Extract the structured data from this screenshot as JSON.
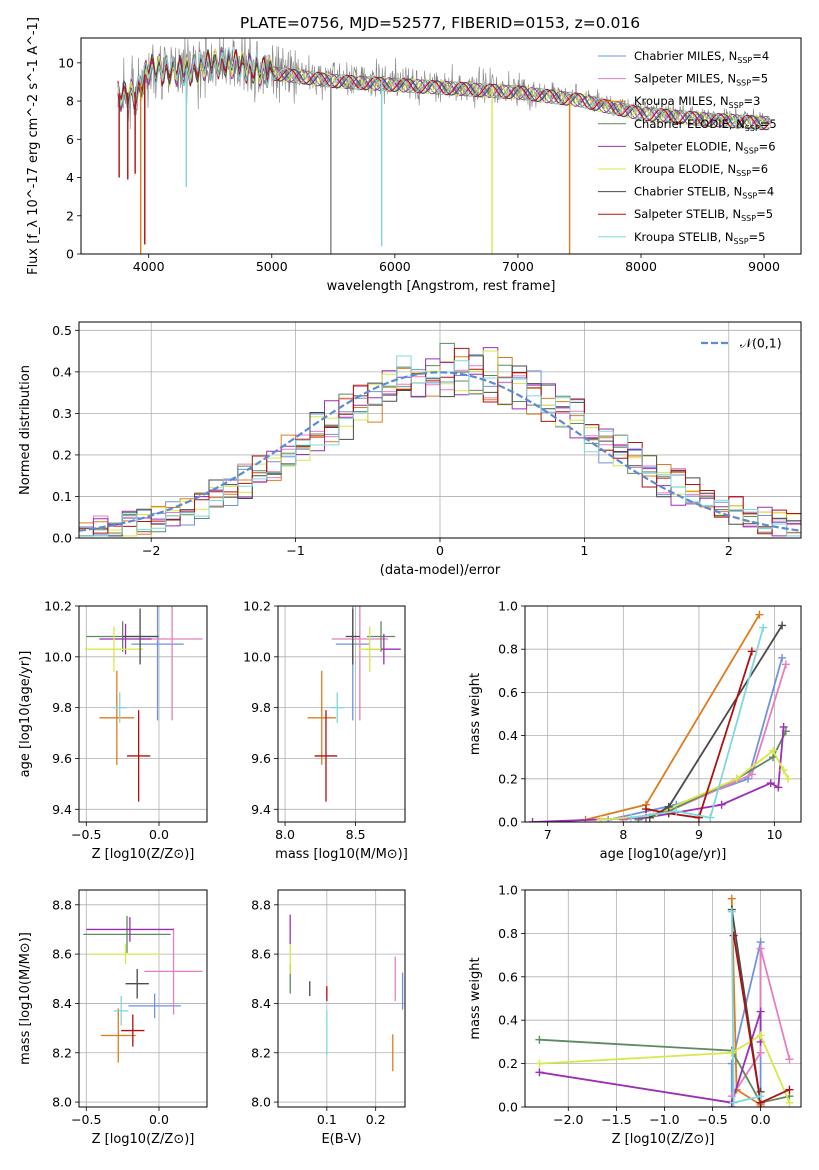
{
  "figure": {
    "title": "PLATE=0756, MJD=52577, FIBERID=0153, z=0.016"
  },
  "legend_spectrum": [
    {
      "pre": "Chabrier MILES, N",
      "sub": "SSP",
      "post": "=4",
      "color": "#6f93e0"
    },
    {
      "pre": "Salpeter MILES, N",
      "sub": "SSP",
      "post": "=5",
      "color": "#e67fbf"
    },
    {
      "pre": "Kroupa MILES, N",
      "sub": "SSP",
      "post": "=3",
      "color": "#e07b1d"
    },
    {
      "pre": "Chabrier ELODIE, N",
      "sub": "SSP",
      "post": "=5",
      "color": "#5f8a5f"
    },
    {
      "pre": "Salpeter ELODIE, N",
      "sub": "SSP",
      "post": "=6",
      "color": "#9b2fb5"
    },
    {
      "pre": "Kroupa ELODIE, N",
      "sub": "SSP",
      "post": "=6",
      "color": "#d7e84a"
    },
    {
      "pre": "Chabrier STELIB, N",
      "sub": "SSP",
      "post": "=4",
      "color": "#4a4a4a"
    },
    {
      "pre": "Salpeter STELIB, N",
      "sub": "SSP",
      "post": "=5",
      "color": "#b01010"
    },
    {
      "pre": "Kroupa STELIB, N",
      "sub": "SSP",
      "post": "=5",
      "color": "#7fd8de"
    }
  ],
  "chart_data": [
    {
      "id": "spectrum",
      "type": "line",
      "xlabel": "wavelength [Angstrom, rest frame]",
      "ylabel": "Flux [f_λ 10^-17 erg cm^-2 s^-1 A^-1]",
      "xlim": [
        3450,
        9300
      ],
      "ylim": [
        0,
        11.3
      ],
      "xticks": [
        4000,
        5000,
        6000,
        7000,
        8000,
        9000
      ],
      "yticks": [
        0,
        2,
        4,
        6,
        8,
        10
      ],
      "grid": false,
      "legend_position": "top-right",
      "data_color": "#808080",
      "data_range": [
        3750,
        9050
      ],
      "continuum": [
        [
          3750,
          8.4
        ],
        [
          3900,
          8.5
        ],
        [
          4000,
          9.8
        ],
        [
          4300,
          9.7
        ],
        [
          4600,
          10.2
        ],
        [
          5000,
          9.6
        ],
        [
          5500,
          9.2
        ],
        [
          6000,
          9.0
        ],
        [
          6500,
          8.8
        ],
        [
          7000,
          8.6
        ],
        [
          7500,
          8.2
        ],
        [
          7700,
          7.9
        ],
        [
          8000,
          7.5
        ],
        [
          8500,
          7.2
        ],
        [
          9000,
          7.0
        ],
        [
          9050,
          7.0
        ]
      ],
      "dips": [
        {
          "x": 3760,
          "y": 4.0,
          "color": "#b01010"
        },
        {
          "x": 3830,
          "y": 3.9,
          "color": "#b01010"
        },
        {
          "x": 3890,
          "y": 4.2,
          "color": "#b01010"
        },
        {
          "x": 3935,
          "y": 0.0,
          "color": "#e07b1d"
        },
        {
          "x": 3968,
          "y": 0.5,
          "color": "#b01010"
        },
        {
          "x": 4305,
          "y": 3.5,
          "color": "#7fd8de"
        },
        {
          "x": 5480,
          "y": 0.0,
          "color": "#808080"
        },
        {
          "x": 5893,
          "y": 0.4,
          "color": "#7fd8de"
        },
        {
          "x": 6790,
          "y": 0.0,
          "color": "#d7e84a"
        },
        {
          "x": 7420,
          "y": 0.0,
          "color": "#e07b1d"
        },
        {
          "x": 8770,
          "y": 6.6,
          "color": "#7fd8de"
        }
      ]
    },
    {
      "id": "residuals",
      "type": "histogram",
      "xlabel": "(data-model)/error",
      "ylabel": "Normed distribution",
      "xlim": [
        -2.5,
        2.5
      ],
      "ylim": [
        0,
        0.52
      ],
      "xticks": [
        -2,
        -1,
        0,
        1,
        2
      ],
      "yticks": [
        0.0,
        0.1,
        0.2,
        0.3,
        0.4,
        0.5
      ],
      "grid": true,
      "legend_position": "top-right",
      "reference_label": "𝒩(0,1)",
      "reference_color": "#5b8bd6",
      "bins": 50,
      "series_colors": [
        "#6f93e0",
        "#e67fbf",
        "#e07b1d",
        "#5f8a5f",
        "#9b2fb5",
        "#d7e84a",
        "#4a4a4a",
        "#b01010",
        "#7fd8de"
      ]
    },
    {
      "id": "age_vs_Z",
      "type": "errorbar",
      "xlabel": "Z [log10(Z/Z⊙)]",
      "ylabel": "age  [log10(age/yr)]",
      "xlim": [
        -0.55,
        0.33
      ],
      "ylim": [
        9.35,
        10.2
      ],
      "xticks": [
        -0.5,
        0.0
      ],
      "yticks": [
        9.4,
        9.6,
        9.8,
        10.0,
        10.2
      ],
      "grid": true,
      "points": [
        {
          "x": -0.01,
          "y": 10.05,
          "xerr": 0.18,
          "yerr": 0.6,
          "color": "#6f93e0"
        },
        {
          "x": 0.09,
          "y": 10.07,
          "xerr": 0.21,
          "yerr": 0.64,
          "color": "#e67fbf"
        },
        {
          "x": -0.29,
          "y": 9.76,
          "xerr": 0.12,
          "yerr": 0.37,
          "color": "#e07b1d"
        },
        {
          "x": -0.25,
          "y": 10.08,
          "xerr": 0.25,
          "yerr": 0.12,
          "color": "#5f8a5f"
        },
        {
          "x": -0.23,
          "y": 10.07,
          "xerr": 0.18,
          "yerr": 0.12,
          "color": "#9b2fb5"
        },
        {
          "x": -0.31,
          "y": 10.03,
          "xerr": 0.2,
          "yerr": 0.18,
          "color": "#d7e84a"
        },
        {
          "x": -0.13,
          "y": 10.08,
          "xerr": 0.12,
          "yerr": 0.22,
          "color": "#4a4a4a"
        },
        {
          "x": -0.14,
          "y": 9.61,
          "xerr": 0.08,
          "yerr": 0.36,
          "color": "#b01010"
        },
        {
          "x": -0.27,
          "y": 9.8,
          "xerr": 0.05,
          "yerr": 0.12,
          "color": "#7fd8de"
        }
      ]
    },
    {
      "id": "age_vs_mass",
      "type": "errorbar",
      "xlabel": "mass [log10(M/M⊙)]",
      "ylabel": "",
      "xlim": [
        7.95,
        8.85
      ],
      "ylim": [
        9.35,
        10.2
      ],
      "xticks": [
        8.0,
        8.5
      ],
      "yticks": [
        9.4,
        9.6,
        9.8,
        10.0,
        10.2
      ],
      "grid": true,
      "points": [
        {
          "x": 8.48,
          "y": 10.05,
          "xerr": 0.12,
          "yerr": 0.6,
          "color": "#6f93e0"
        },
        {
          "x": 8.53,
          "y": 10.07,
          "xerr": 0.2,
          "yerr": 0.64,
          "color": "#e67fbf"
        },
        {
          "x": 8.26,
          "y": 9.76,
          "xerr": 0.1,
          "yerr": 0.37,
          "color": "#e07b1d"
        },
        {
          "x": 8.68,
          "y": 10.08,
          "xerr": 0.1,
          "yerr": 0.12,
          "color": "#5f8a5f"
        },
        {
          "x": 8.7,
          "y": 10.03,
          "xerr": 0.12,
          "yerr": 0.12,
          "color": "#9b2fb5"
        },
        {
          "x": 8.6,
          "y": 10.03,
          "xerr": 0.08,
          "yerr": 0.18,
          "color": "#d7e84a"
        },
        {
          "x": 8.48,
          "y": 10.08,
          "xerr": 0.05,
          "yerr": 0.22,
          "color": "#4a4a4a"
        },
        {
          "x": 8.29,
          "y": 9.61,
          "xerr": 0.08,
          "yerr": 0.36,
          "color": "#b01010"
        },
        {
          "x": 8.37,
          "y": 9.8,
          "xerr": 0.05,
          "yerr": 0.12,
          "color": "#7fd8de"
        }
      ]
    },
    {
      "id": "weight_vs_age",
      "type": "line",
      "xlabel": "age  [log10(age/yr)]",
      "ylabel": "mass weight",
      "xlim": [
        6.7,
        10.35
      ],
      "ylim": [
        0,
        1.0
      ],
      "xticks": [
        7,
        8,
        9,
        10
      ],
      "yticks": [
        0.0,
        0.2,
        0.4,
        0.6,
        0.8,
        1.0
      ],
      "grid": true,
      "series": [
        {
          "color": "#6f93e0",
          "x": [
            7.8,
            8.7,
            9.65,
            10.1
          ],
          "y": [
            0.01,
            0.08,
            0.2,
            0.76
          ]
        },
        {
          "color": "#e67fbf",
          "x": [
            8.0,
            8.6,
            9.7,
            10.15
          ],
          "y": [
            0.01,
            0.05,
            0.22,
            0.73
          ]
        },
        {
          "color": "#e07b1d",
          "x": [
            7.5,
            8.3,
            9.8
          ],
          "y": [
            0.01,
            0.08,
            0.96
          ]
        },
        {
          "color": "#5f8a5f",
          "x": [
            8.2,
            8.6,
            9.5,
            9.98,
            10.15
          ],
          "y": [
            0.01,
            0.05,
            0.2,
            0.3,
            0.42
          ]
        },
        {
          "color": "#9b2fb5",
          "x": [
            6.8,
            8.3,
            9.3,
            9.95,
            10.05,
            10.12
          ],
          "y": [
            0.0,
            0.02,
            0.08,
            0.18,
            0.16,
            0.44
          ]
        },
        {
          "color": "#d7e84a",
          "x": [
            7.7,
            8.4,
            9.5,
            9.98,
            10.12,
            10.18
          ],
          "y": [
            0.01,
            0.03,
            0.2,
            0.33,
            0.24,
            0.2
          ]
        },
        {
          "color": "#4a4a4a",
          "x": [
            8.35,
            8.6,
            10.1
          ],
          "y": [
            0.02,
            0.07,
            0.91
          ]
        },
        {
          "color": "#b01010",
          "x": [
            8.3,
            8.6,
            9.0,
            9.7
          ],
          "y": [
            0.06,
            0.04,
            0.02,
            0.79
          ]
        },
        {
          "color": "#7fd8de",
          "x": [
            8.1,
            8.7,
            9.15,
            9.85
          ],
          "y": [
            0.02,
            0.05,
            0.02,
            0.9
          ]
        }
      ]
    },
    {
      "id": "mass_vs_Z",
      "type": "errorbar",
      "xlabel": "Z [log10(Z/Z⊙)]",
      "ylabel": "mass [log10(M/M⊙)]",
      "xlim": [
        -0.55,
        0.33
      ],
      "ylim": [
        7.98,
        8.86
      ],
      "xticks": [
        -0.5,
        0.0
      ],
      "yticks": [
        8.0,
        8.2,
        8.4,
        8.6,
        8.8
      ],
      "grid": true,
      "points": [
        {
          "x": -0.03,
          "y": 8.39,
          "xerr": 0.18,
          "yerr": 0.1,
          "color": "#6f93e0"
        },
        {
          "x": 0.1,
          "y": 8.53,
          "xerr": 0.2,
          "yerr": 0.35,
          "color": "#e67fbf"
        },
        {
          "x": -0.28,
          "y": 8.27,
          "xerr": 0.12,
          "yerr": 0.22,
          "color": "#e07b1d"
        },
        {
          "x": -0.22,
          "y": 8.68,
          "xerr": 0.3,
          "yerr": 0.15,
          "color": "#5f8a5f"
        },
        {
          "x": -0.2,
          "y": 8.7,
          "xerr": 0.3,
          "yerr": 0.1,
          "color": "#9b2fb5"
        },
        {
          "x": -0.23,
          "y": 8.6,
          "xerr": 0.25,
          "yerr": 0.08,
          "color": "#d7e84a"
        },
        {
          "x": -0.15,
          "y": 8.48,
          "xerr": 0.08,
          "yerr": 0.12,
          "color": "#4a4a4a"
        },
        {
          "x": -0.18,
          "y": 8.29,
          "xerr": 0.08,
          "yerr": 0.13,
          "color": "#b01010"
        },
        {
          "x": -0.26,
          "y": 8.37,
          "xerr": 0.05,
          "yerr": 0.12,
          "color": "#7fd8de"
        }
      ]
    },
    {
      "id": "mass_vs_EBV",
      "type": "errorbar",
      "xlabel": "E(B-V)",
      "ylabel": "",
      "xlim": [
        0.0,
        0.26
      ],
      "ylim": [
        7.98,
        8.86
      ],
      "xticks": [
        0.1,
        0.2
      ],
      "yticks": [
        8.0,
        8.2,
        8.4,
        8.6,
        8.8
      ],
      "grid": true,
      "points": [
        {
          "x": 0.255,
          "y": 8.45,
          "yerr": 0.15,
          "color": "#6f93e0"
        },
        {
          "x": 0.24,
          "y": 8.5,
          "yerr": 0.18,
          "color": "#e67fbf"
        },
        {
          "x": 0.235,
          "y": 8.2,
          "yerr": 0.15,
          "color": "#e07b1d"
        },
        {
          "x": 0.025,
          "y": 8.5,
          "yerr": 0.12,
          "color": "#5f8a5f"
        },
        {
          "x": 0.025,
          "y": 8.7,
          "yerr": 0.12,
          "color": "#9b2fb5"
        },
        {
          "x": 0.025,
          "y": 8.58,
          "yerr": 0.12,
          "color": "#d7e84a"
        },
        {
          "x": 0.065,
          "y": 8.46,
          "yerr": 0.06,
          "color": "#4a4a4a"
        },
        {
          "x": 0.1,
          "y": 8.44,
          "yerr": 0.06,
          "color": "#b01010"
        },
        {
          "x": 0.1,
          "y": 8.28,
          "yerr": 0.18,
          "color": "#7fd8de"
        }
      ]
    },
    {
      "id": "weight_vs_Z",
      "type": "line",
      "xlabel": "Z [log10(Z/Z⊙)]",
      "ylabel": "mass weight",
      "xlim": [
        -2.45,
        0.42
      ],
      "ylim": [
        0,
        1.0
      ],
      "xticks": [
        -2.0,
        -1.5,
        -1.0,
        -0.5,
        0.0
      ],
      "yticks": [
        0.0,
        0.2,
        0.4,
        0.6,
        0.8,
        1.0
      ],
      "grid": true,
      "series": [
        {
          "color": "#6f93e0",
          "x": [
            -0.3,
            -0.3,
            0.0,
            0.0
          ],
          "y": [
            0.0,
            0.2,
            0.76,
            0.0
          ]
        },
        {
          "color": "#e67fbf",
          "x": [
            -0.3,
            0.0,
            0.0,
            0.3
          ],
          "y": [
            0.05,
            0.25,
            0.73,
            0.22
          ]
        },
        {
          "color": "#e07b1d",
          "x": [
            -0.3,
            -0.25,
            0.0
          ],
          "y": [
            0.96,
            0.08,
            0.01
          ]
        },
        {
          "color": "#5f8a5f",
          "x": [
            -2.3,
            -0.3,
            0.0,
            0.3
          ],
          "y": [
            0.31,
            0.26,
            0.02,
            0.05
          ]
        },
        {
          "color": "#9b2fb5",
          "x": [
            -2.3,
            -0.3,
            0.0,
            0.0
          ],
          "y": [
            0.16,
            0.02,
            0.44,
            0.3
          ]
        },
        {
          "color": "#d7e84a",
          "x": [
            -2.3,
            -0.3,
            0.0,
            0.3
          ],
          "y": [
            0.2,
            0.25,
            0.33,
            0.02
          ]
        },
        {
          "color": "#4a4a4a",
          "x": [
            -0.3,
            0.0,
            0.0
          ],
          "y": [
            0.91,
            0.02,
            0.07
          ]
        },
        {
          "color": "#b01010",
          "x": [
            -0.28,
            0.0,
            0.3
          ],
          "y": [
            0.79,
            0.02,
            0.08
          ]
        },
        {
          "color": "#7fd8de",
          "x": [
            -0.3,
            -0.28,
            0.0
          ],
          "y": [
            0.9,
            0.02,
            0.05
          ]
        }
      ]
    }
  ]
}
